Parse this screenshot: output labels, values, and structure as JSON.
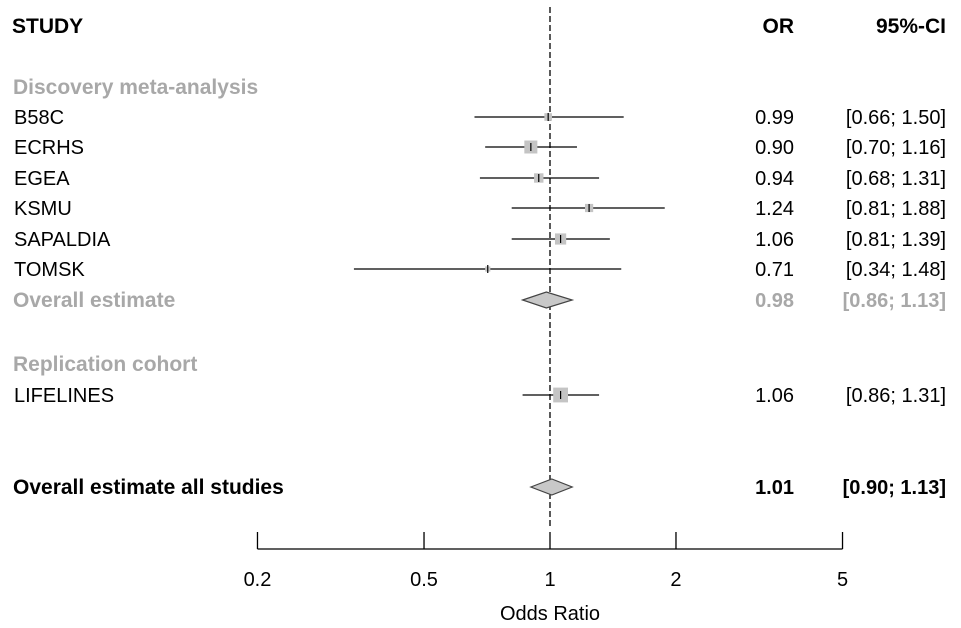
{
  "chart_data": {
    "type": "forest",
    "title": "",
    "headers": {
      "study": "STUDY",
      "or": "OR",
      "ci": "95%-CI"
    },
    "groups": [
      {
        "label": "Discovery meta-analysis",
        "rows": [
          {
            "study": "B58C",
            "or": 0.99,
            "lo": 0.66,
            "hi": 1.5,
            "weight": 0.3,
            "or_text": "0.99",
            "ci_text": "[0.66; 1.50]"
          },
          {
            "study": "ECRHS",
            "or": 0.9,
            "lo": 0.7,
            "hi": 1.16,
            "weight": 0.75,
            "or_text": "0.90",
            "ci_text": "[0.70; 1.16]"
          },
          {
            "study": "EGEA",
            "or": 0.94,
            "lo": 0.68,
            "hi": 1.31,
            "weight": 0.45,
            "or_text": "0.94",
            "ci_text": "[0.68; 1.31]"
          },
          {
            "study": "KSMU",
            "or": 1.24,
            "lo": 0.81,
            "hi": 1.88,
            "weight": 0.35,
            "or_text": "1.24",
            "ci_text": "[0.81; 1.88]"
          },
          {
            "study": "SAPALDIA",
            "or": 1.06,
            "lo": 0.81,
            "hi": 1.39,
            "weight": 0.6,
            "or_text": "1.06",
            "ci_text": "[0.81; 1.39]"
          },
          {
            "study": "TOMSK",
            "or": 0.71,
            "lo": 0.34,
            "hi": 1.48,
            "weight": 0.1,
            "or_text": "0.71",
            "ci_text": "[0.34; 1.48]"
          }
        ],
        "overall": {
          "label": "Overall estimate",
          "or": 0.98,
          "lo": 0.86,
          "hi": 1.13,
          "or_text": "0.98",
          "ci_text": "[0.86; 1.13]"
        }
      },
      {
        "label": "Replication cohort",
        "rows": [
          {
            "study": "LIFELINES",
            "or": 1.06,
            "lo": 0.86,
            "hi": 1.31,
            "weight": 0.9,
            "or_text": "1.06",
            "ci_text": "[0.86; 1.31]"
          }
        ]
      }
    ],
    "total": {
      "label": "Overall estimate all studies",
      "or": 1.01,
      "lo": 0.9,
      "hi": 1.13,
      "or_text": "1.01",
      "ci_text": "[0.90; 1.13]"
    },
    "x_axis": {
      "label": "Odds Ratio",
      "scale": "log",
      "ticks": [
        0.2,
        0.5,
        1,
        2,
        5
      ],
      "tick_labels": [
        "0.2",
        "0.5",
        "1",
        "2",
        "5"
      ],
      "range": [
        0.2,
        5
      ]
    },
    "reference_line": 1,
    "colors": {
      "box": "#c4c4c4",
      "group_label": "#a8a8a8",
      "diamond": "#c8c8c8",
      "text": "#000000"
    }
  }
}
